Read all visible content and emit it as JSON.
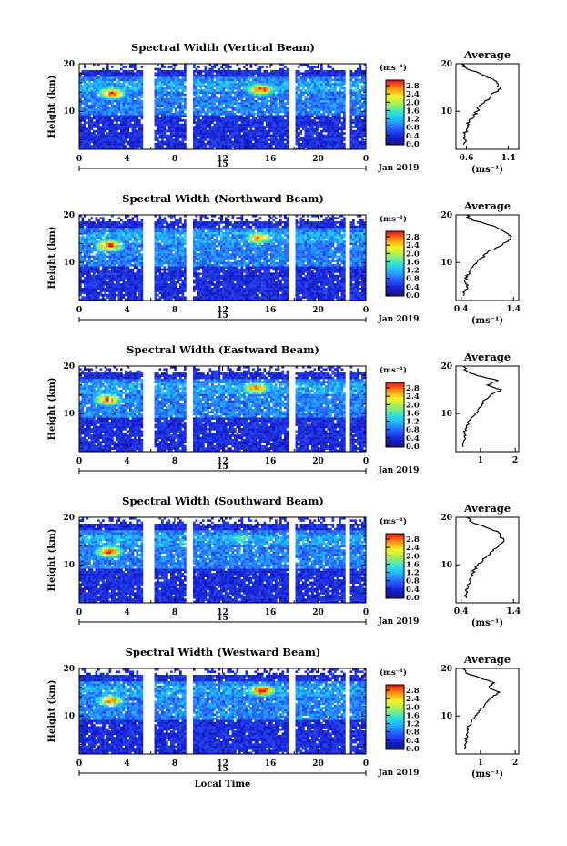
{
  "chart_data": [
    {
      "type": "heatmap",
      "title": "Spectral Width (Vertical Beam)",
      "ylabel": "Height (km)",
      "ylim": [
        2,
        20
      ],
      "yticks": [
        "20",
        "10"
      ],
      "xlim": [
        0,
        24
      ],
      "xticks": [
        "0",
        "4",
        "8",
        "12",
        "16",
        "20",
        "0"
      ],
      "date_day": "15",
      "date_label": "Jan 2019",
      "data_gaps_hours": [
        [
          5.3,
          6.3
        ],
        [
          8.9,
          9.6
        ],
        [
          17.6,
          18.0
        ],
        [
          22.3,
          22.6
        ]
      ],
      "enhanced_regions": [
        {
          "x": 2.7,
          "y": 13.8,
          "value": 2.6
        },
        {
          "x": 15.2,
          "y": 14.6,
          "value": 2.6
        }
      ],
      "colorbar": {
        "unit": "(ms⁻¹)",
        "min": 0.0,
        "max": 2.8,
        "ticks": [
          "2.8",
          "2.4",
          "2.0",
          "1.6",
          "1.2",
          "0.8",
          "0.4",
          "0.0"
        ]
      },
      "average": {
        "title": "Average",
        "xlabel": "(ms⁻¹)",
        "xticks": [
          "0.6",
          "1.4"
        ],
        "xlim": [
          0.4,
          1.6
        ],
        "ylim": [
          2,
          20
        ],
        "yticks": [
          "20",
          "10"
        ],
        "heights": [
          3,
          4,
          5,
          6,
          7,
          8,
          9,
          10,
          11,
          12,
          13,
          14,
          15,
          16,
          17,
          18,
          19,
          20
        ],
        "values": [
          0.55,
          0.58,
          0.56,
          0.6,
          0.62,
          0.65,
          0.75,
          0.8,
          0.85,
          0.95,
          1.05,
          1.15,
          1.25,
          1.18,
          1.05,
          0.85,
          0.6,
          0.5
        ]
      }
    },
    {
      "type": "heatmap",
      "title": "Spectral Width (Northward Beam)",
      "ylabel": "Height (km)",
      "ylim": [
        2,
        20
      ],
      "yticks": [
        "20",
        "10"
      ],
      "xlim": [
        0,
        24
      ],
      "xticks": [
        "0",
        "4",
        "8",
        "12",
        "16",
        "20",
        "0"
      ],
      "date_day": "15",
      "date_label": "Jan 2019",
      "data_gaps_hours": [
        [
          5.3,
          6.3
        ],
        [
          8.9,
          9.6
        ],
        [
          17.6,
          18.0
        ],
        [
          22.3,
          22.6
        ]
      ],
      "enhanced_regions": [
        {
          "x": 2.5,
          "y": 13.6,
          "value": 2.8
        },
        {
          "x": 15.0,
          "y": 15.2,
          "value": 2.4
        }
      ],
      "colorbar": {
        "unit": "(ms⁻¹)",
        "min": 0.0,
        "max": 2.8,
        "ticks": [
          "2.8",
          "2.4",
          "2.0",
          "1.6",
          "1.2",
          "0.8",
          "0.4",
          "0.0"
        ]
      },
      "average": {
        "title": "Average",
        "xlabel": "(ms⁻¹)",
        "xticks": [
          "0.4",
          "1.4"
        ],
        "xlim": [
          0.3,
          1.5
        ],
        "ylim": [
          2,
          20
        ],
        "yticks": [
          "20",
          "10"
        ],
        "heights": [
          3,
          4,
          5,
          6,
          7,
          8,
          9,
          10,
          11,
          12,
          13,
          14,
          15,
          16,
          17,
          18,
          19,
          20
        ],
        "values": [
          0.45,
          0.48,
          0.5,
          0.47,
          0.52,
          0.55,
          0.62,
          0.7,
          0.8,
          0.9,
          1.05,
          1.2,
          1.35,
          1.3,
          1.15,
          0.9,
          0.6,
          0.5
        ]
      }
    },
    {
      "type": "heatmap",
      "title": "Spectral Width (Eastward Beam)",
      "ylabel": "Height (km)",
      "ylim": [
        2,
        20
      ],
      "yticks": [
        "20",
        "10"
      ],
      "xlim": [
        0,
        24
      ],
      "xticks": [
        "0",
        "4",
        "8",
        "12",
        "16",
        "20",
        "0"
      ],
      "date_day": "15",
      "date_label": "Jan 2019",
      "data_gaps_hours": [
        [
          5.3,
          6.3
        ],
        [
          8.9,
          9.6
        ],
        [
          17.6,
          18.0
        ],
        [
          22.3,
          22.6
        ]
      ],
      "enhanced_regions": [
        {
          "x": 2.4,
          "y": 13.0,
          "value": 2.6
        },
        {
          "x": 14.8,
          "y": 15.4,
          "value": 2.4
        }
      ],
      "colorbar": {
        "unit": "(ms⁻¹)",
        "min": 0.0,
        "max": 2.8,
        "ticks": [
          "2.8",
          "2.4",
          "2.0",
          "1.6",
          "1.2",
          "0.8",
          "0.4",
          "0.0"
        ]
      },
      "average": {
        "title": "Average",
        "xlabel": "",
        "xticks": [
          "1",
          "2"
        ],
        "xlim": [
          0.3,
          2.1
        ],
        "ylim": [
          2,
          20
        ],
        "yticks": [
          "20",
          "10"
        ],
        "heights": [
          3,
          4,
          5,
          6,
          7,
          8,
          9,
          10,
          11,
          12,
          13,
          14,
          15,
          16,
          17,
          18,
          19,
          20
        ],
        "values": [
          0.5,
          0.52,
          0.55,
          0.55,
          0.6,
          0.65,
          0.72,
          0.85,
          0.95,
          1.05,
          1.15,
          1.3,
          1.6,
          1.2,
          1.5,
          0.9,
          0.6,
          0.5
        ]
      }
    },
    {
      "type": "heatmap",
      "title": "Spectral Width (Southward Beam)",
      "ylabel": "Height (km)",
      "ylim": [
        2,
        20
      ],
      "yticks": [
        "20",
        "10"
      ],
      "xlim": [
        0,
        24
      ],
      "xticks": [
        "0",
        "4",
        "8",
        "12",
        "16",
        "20",
        "0"
      ],
      "date_day": "15",
      "date_label": "Jan 2019",
      "data_gaps_hours": [
        [
          5.3,
          6.3
        ],
        [
          8.9,
          9.6
        ],
        [
          17.6,
          18.0
        ],
        [
          22.3,
          22.6
        ]
      ],
      "enhanced_regions": [
        {
          "x": 2.5,
          "y": 12.8,
          "value": 2.6
        },
        {
          "x": 13.5,
          "y": 15.6,
          "value": 1.6
        }
      ],
      "colorbar": {
        "unit": "(ms⁻¹)",
        "min": 0.0,
        "max": 2.8,
        "ticks": [
          "2.8",
          "2.4",
          "2.0",
          "1.6",
          "1.2",
          "0.8",
          "0.4",
          "0.0"
        ]
      },
      "average": {
        "title": "Average",
        "xlabel": "(ms⁻¹)",
        "xticks": [
          "0.4",
          "1.4"
        ],
        "xlim": [
          0.3,
          1.5
        ],
        "ylim": [
          2,
          20
        ],
        "yticks": [
          "20",
          "10"
        ],
        "heights": [
          3,
          4,
          5,
          6,
          7,
          8,
          9,
          10,
          11,
          12,
          13,
          14,
          15,
          16,
          17,
          18,
          19,
          20
        ],
        "values": [
          0.5,
          0.5,
          0.52,
          0.55,
          0.56,
          0.6,
          0.65,
          0.72,
          0.82,
          0.92,
          1.02,
          1.12,
          1.22,
          1.15,
          1.1,
          0.85,
          0.6,
          0.5
        ]
      }
    },
    {
      "type": "heatmap",
      "title": "Spectral Width (Westward Beam)",
      "ylabel": "Height (km)",
      "ylim": [
        2,
        20
      ],
      "yticks": [
        "20",
        "10"
      ],
      "xlim": [
        0,
        24
      ],
      "xticks": [
        "0",
        "4",
        "8",
        "12",
        "16",
        "20",
        "0"
      ],
      "date_day": "15",
      "date_label": "Jan 2019",
      "x_axis_label": "Local Time",
      "data_gaps_hours": [
        [
          5.3,
          6.3
        ],
        [
          8.9,
          9.6
        ],
        [
          17.6,
          18.0
        ],
        [
          22.3,
          22.6
        ]
      ],
      "enhanced_regions": [
        {
          "x": 2.6,
          "y": 13.2,
          "value": 2.4
        },
        {
          "x": 15.3,
          "y": 15.4,
          "value": 2.8
        }
      ],
      "colorbar": {
        "unit": "(ms⁻¹)",
        "min": 0.0,
        "max": 2.8,
        "ticks": [
          "2.8",
          "2.4",
          "2.0",
          "1.6",
          "1.2",
          "0.8",
          "0.4",
          "0.0"
        ]
      },
      "average": {
        "title": "Average",
        "xlabel": "(ms⁻¹)",
        "xticks": [
          "1",
          "2"
        ],
        "xlim": [
          0.3,
          2.1
        ],
        "ylim": [
          2,
          20
        ],
        "yticks": [
          "20",
          "10"
        ],
        "heights": [
          3,
          4,
          5,
          6,
          7,
          8,
          9,
          10,
          11,
          12,
          13,
          14,
          15,
          16,
          17,
          18,
          19,
          20
        ],
        "values": [
          0.55,
          0.55,
          0.6,
          0.6,
          0.62,
          0.68,
          0.75,
          0.85,
          0.95,
          1.1,
          1.2,
          1.35,
          1.55,
          1.25,
          1.4,
          1.0,
          0.6,
          0.5
        ]
      }
    }
  ]
}
